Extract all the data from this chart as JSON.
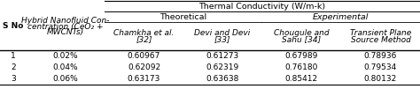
{
  "title_main": "Thermal Conductivity (W/m-k)",
  "subheader_theoretical": "Theoretical",
  "subheader_experimental": "Experimental",
  "col_headers_line1": [
    "S No",
    "Hybrid Nanofluid Con-",
    "Chamkha et al.",
    "Devi and Devi",
    "Chougule and",
    "Transient Plane"
  ],
  "col_headers_line2": [
    "",
    "centration (CeO₂ +",
    "[32]",
    "[33]",
    "Sahu [34]",
    "Source Method"
  ],
  "col_headers_line3": [
    "",
    "MWCNTs)",
    "",
    "",
    "",
    ""
  ],
  "rows": [
    [
      "1",
      "0.02%",
      "0.60967",
      "0.61273",
      "0.67989",
      "0.78936"
    ],
    [
      "2",
      "0.04%",
      "0.62092",
      "0.62319",
      "0.76180",
      "0.79534"
    ],
    [
      "3",
      "0.06%",
      "0.63173",
      "0.63638",
      "0.85412",
      "0.80132"
    ]
  ],
  "figsize": [
    4.74,
    1.01
  ],
  "dpi": 100,
  "background_color": "#ffffff",
  "text_color": "#000000",
  "fs": 6.5
}
